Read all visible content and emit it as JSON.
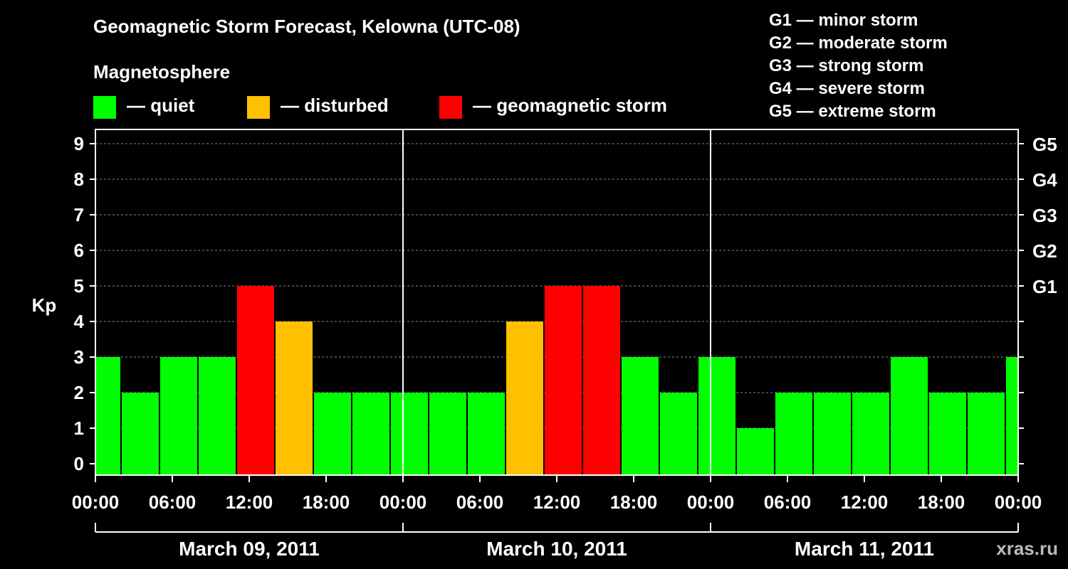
{
  "header": {
    "title": "Geomagnetic Storm Forecast, Kelowna (UTC-08)",
    "legend_heading": "Magnetosphere",
    "legend": [
      {
        "label": "— quiet",
        "color": "#00ff00"
      },
      {
        "label": "— disturbed",
        "color": "#ffc000"
      },
      {
        "label": "— geomagnetic storm",
        "color": "#ff0000"
      }
    ],
    "storm_levels": [
      "G1 — minor storm",
      "G2 — moderate storm",
      "G3 — strong storm",
      "G4 — severe storm",
      "G5 — extreme storm"
    ]
  },
  "watermark": "xras.ru",
  "chart_data": {
    "type": "bar",
    "title": "Geomagnetic Storm Forecast, Kelowna (UTC-08)",
    "ylabel": "Kp",
    "ylim": [
      0,
      9
    ],
    "y_ticks": [
      0,
      1,
      2,
      3,
      4,
      5,
      6,
      7,
      8,
      9
    ],
    "right_axis_labels": [
      {
        "kp": 5,
        "label": "G1"
      },
      {
        "kp": 6,
        "label": "G2"
      },
      {
        "kp": 7,
        "label": "G3"
      },
      {
        "kp": 8,
        "label": "G4"
      },
      {
        "kp": 9,
        "label": "G5"
      }
    ],
    "x_tick_labels": [
      "00:00",
      "06:00",
      "12:00",
      "18:00",
      "00:00",
      "06:00",
      "12:00",
      "18:00",
      "00:00",
      "06:00",
      "12:00",
      "18:00",
      "00:00"
    ],
    "days": [
      "March 09, 2011",
      "March 10, 2011",
      "March 11, 2011"
    ],
    "x_range_hours": [
      0,
      72
    ],
    "first_bar_offset_hours": -1,
    "interval_hours": 3,
    "kp_values": [
      3,
      2,
      3,
      3,
      5,
      4,
      2,
      2,
      2,
      2,
      2,
      4,
      5,
      5,
      3,
      2,
      3,
      1,
      2,
      2,
      2,
      3,
      2,
      2,
      3
    ],
    "status_colors": {
      "quiet": "#00ff00",
      "disturbed": "#ffc000",
      "storm": "#ff0000"
    },
    "grid": true
  }
}
